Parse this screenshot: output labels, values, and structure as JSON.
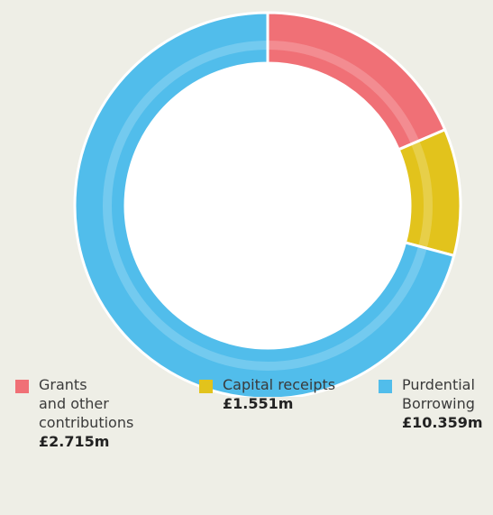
{
  "chart_data": {
    "type": "donut",
    "series": [
      {
        "name": "Grants\nand other\ncontributions",
        "color": "#f07076",
        "values": [
          2.715
        ],
        "value_labels": [
          "£2.715m"
        ]
      },
      {
        "name": "Capital receipts",
        "color": "#e2c31c",
        "values": [
          1.551
        ],
        "value_labels": [
          "£1.551m"
        ]
      },
      {
        "name": "Purdential\nBorrowing",
        "color": "#51bdeb",
        "values": [
          10.359
        ],
        "value_labels": [
          "£10.359m"
        ]
      }
    ]
  }
}
